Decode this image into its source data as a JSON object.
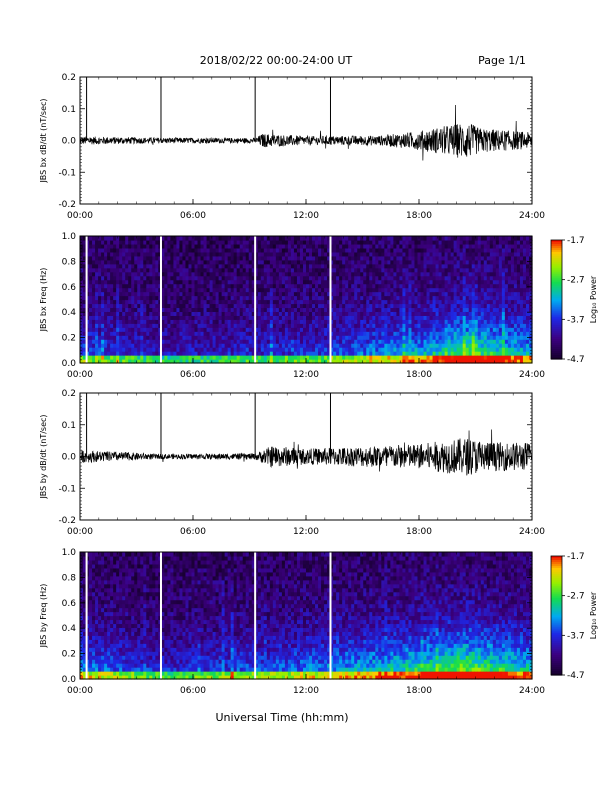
{
  "header": {
    "title": "2018/02/22   00:00-24:00  UT",
    "page": "Page 1/1"
  },
  "x_axis_title": "Universal Time (hh:mm)",
  "colorbar": {
    "ticks": [
      "-1.7",
      "-2.7",
      "-3.7",
      "-4.7"
    ],
    "label": "Log₁₀ Power"
  },
  "chart_data": [
    {
      "type": "line",
      "ylabel": "JBS bx dB/dt (nT/sec)",
      "x": [
        "00:00",
        "06:00",
        "12:00",
        "18:00",
        "24:00"
      ],
      "xlim": [
        0,
        24
      ],
      "ylim": [
        -0.2,
        0.2
      ],
      "yticks": [
        "0.2",
        "0.1",
        "0.0",
        "-0.1",
        "-0.2"
      ],
      "ytick_values": [
        0.2,
        0.1,
        0.0,
        -0.1,
        -0.2
      ],
      "spikes_hours": [
        0.35,
        4.3,
        9.3,
        13.3
      ],
      "noise_envelope": [
        {
          "hour": 0,
          "amp": 0.013
        },
        {
          "hour": 4.3,
          "amp": 0.009
        },
        {
          "hour": 9.3,
          "amp": 0.008
        },
        {
          "hour": 9.7,
          "amp": 0.022
        },
        {
          "hour": 12,
          "amp": 0.014
        },
        {
          "hour": 16,
          "amp": 0.016
        },
        {
          "hour": 18,
          "amp": 0.03
        },
        {
          "hour": 20.5,
          "amp": 0.06
        },
        {
          "hour": 21.2,
          "amp": 0.04
        },
        {
          "hour": 24,
          "amp": 0.025
        }
      ]
    },
    {
      "type": "heatmap",
      "ylabel": "JBS bx Freq (Hz)",
      "x": [
        "00:00",
        "06:00",
        "12:00",
        "18:00",
        "24:00"
      ],
      "xlim": [
        0,
        24
      ],
      "ylim": [
        0,
        1.0
      ],
      "yticks": [
        "1.0",
        "0.8",
        "0.6",
        "0.4",
        "0.2",
        "0.0"
      ],
      "ytick_values": [
        1.0,
        0.8,
        0.6,
        0.4,
        0.2,
        0.0
      ],
      "zlim": [
        -4.7,
        -1.7
      ],
      "gaps_hours": [
        0.35,
        4.3,
        9.3,
        13.3
      ],
      "activity": [
        {
          "hour": 0,
          "level": 0.35
        },
        {
          "hour": 4.3,
          "level": 0.2
        },
        {
          "hour": 9.5,
          "level": 0.25
        },
        {
          "hour": 13,
          "level": 0.3
        },
        {
          "hour": 16,
          "level": 0.45
        },
        {
          "hour": 18,
          "level": 0.5
        },
        {
          "hour": 20.5,
          "level": 0.75
        },
        {
          "hour": 24,
          "level": 0.5
        }
      ]
    },
    {
      "type": "line",
      "ylabel": "JBS by dB/dt (nT/sec)",
      "x": [
        "00:00",
        "06:00",
        "12:00",
        "18:00",
        "24:00"
      ],
      "xlim": [
        0,
        24
      ],
      "ylim": [
        -0.2,
        0.2
      ],
      "yticks": [
        "0.2",
        "0.1",
        "0.0",
        "-0.1",
        "-0.2"
      ],
      "ytick_values": [
        0.2,
        0.1,
        0.0,
        -0.1,
        -0.2
      ],
      "spikes_hours": [
        0.35,
        4.3,
        9.3,
        13.3
      ],
      "noise_envelope": [
        {
          "hour": 0,
          "amp": 0.02
        },
        {
          "hour": 4.3,
          "amp": 0.008
        },
        {
          "hour": 9.3,
          "amp": 0.01
        },
        {
          "hour": 10.2,
          "amp": 0.035
        },
        {
          "hour": 12,
          "amp": 0.025
        },
        {
          "hour": 16,
          "amp": 0.035
        },
        {
          "hour": 18,
          "amp": 0.04
        },
        {
          "hour": 20.5,
          "amp": 0.06
        },
        {
          "hour": 22,
          "amp": 0.045
        },
        {
          "hour": 24,
          "amp": 0.045
        }
      ]
    },
    {
      "type": "heatmap",
      "ylabel": "JBS by Freq (Hz)",
      "x": [
        "00:00",
        "06:00",
        "12:00",
        "18:00",
        "24:00"
      ],
      "xlim": [
        0,
        24
      ],
      "ylim": [
        0,
        1.0
      ],
      "yticks": [
        "1.0",
        "0.8",
        "0.6",
        "0.4",
        "0.2",
        "0.0"
      ],
      "ytick_values": [
        1.0,
        0.8,
        0.6,
        0.4,
        0.2,
        0.0
      ],
      "zlim": [
        -4.7,
        -1.7
      ],
      "gaps_hours": [
        0.35,
        4.3,
        9.3,
        13.3
      ],
      "activity": [
        {
          "hour": 0,
          "level": 0.45
        },
        {
          "hour": 4.3,
          "level": 0.25
        },
        {
          "hour": 9.5,
          "level": 0.35
        },
        {
          "hour": 13,
          "level": 0.45
        },
        {
          "hour": 16,
          "level": 0.55
        },
        {
          "hour": 18,
          "level": 0.65
        },
        {
          "hour": 20.5,
          "level": 0.8
        },
        {
          "hour": 24,
          "level": 0.55
        }
      ]
    }
  ]
}
